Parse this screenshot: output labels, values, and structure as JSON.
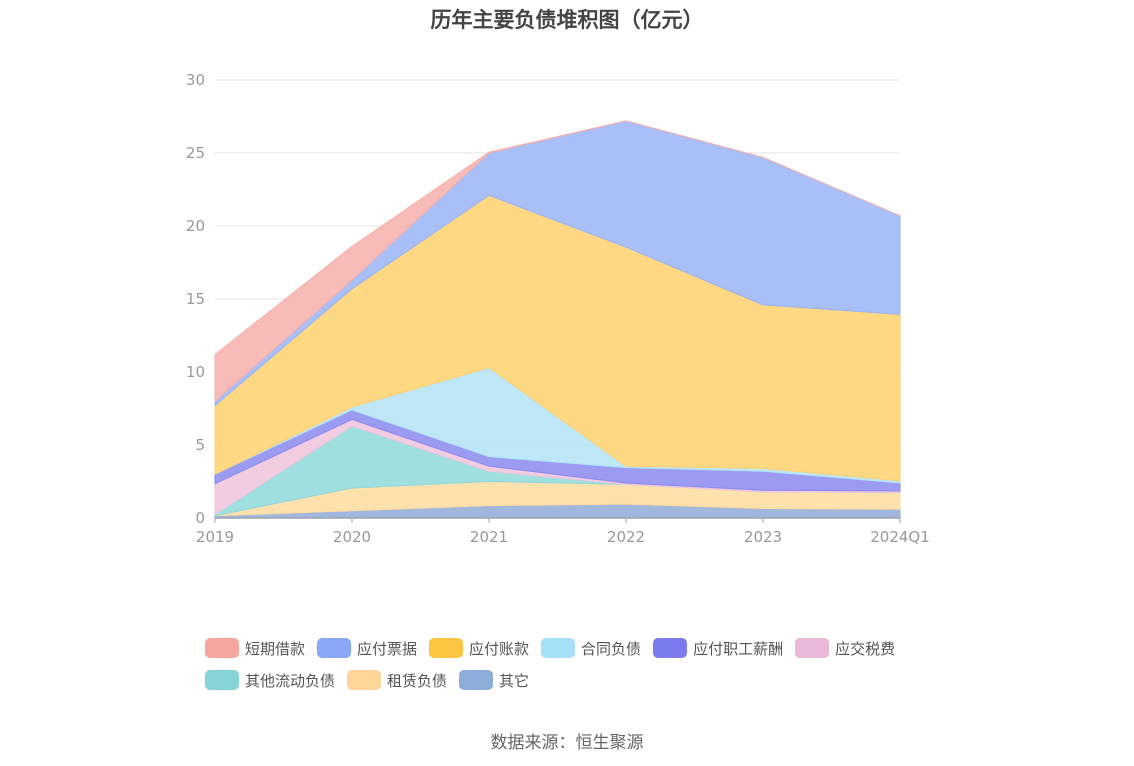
{
  "chart_data": {
    "type": "area",
    "title": "历年主要负债堆积图（亿元）",
    "categories": [
      "2019",
      "2020",
      "2021",
      "2022",
      "2023",
      "2024Q1"
    ],
    "ylim": [
      0,
      30
    ],
    "yticks": [
      0,
      5,
      10,
      15,
      20,
      25,
      30
    ],
    "stacked": true,
    "grid": true,
    "legend_position": "bottom",
    "series": [
      {
        "name": "其它",
        "color": "#91abd6",
        "values": [
          0.15,
          0.5,
          0.85,
          0.95,
          0.65,
          0.6
        ]
      },
      {
        "name": "租赁负债",
        "color": "#ffdca0",
        "values": [
          0.0,
          1.55,
          1.65,
          1.35,
          1.15,
          1.15
        ]
      },
      {
        "name": "其他流动负债",
        "color": "#8fd9d9",
        "values": [
          0.1,
          4.25,
          0.7,
          0.0,
          0.0,
          0.0
        ]
      },
      {
        "name": "应交税费",
        "color": "#f0c4dd",
        "values": [
          2.1,
          0.45,
          0.35,
          0.1,
          0.1,
          0.1
        ]
      },
      {
        "name": "应付职工薪酬",
        "color": "#8a8af0",
        "values": [
          0.65,
          0.65,
          0.65,
          1.05,
          1.3,
          0.55
        ]
      },
      {
        "name": "合同负债",
        "color": "#b3e3f7",
        "values": [
          0.0,
          0.2,
          6.1,
          0.1,
          0.2,
          0.15
        ]
      },
      {
        "name": "应付账款",
        "color": "#ffd16e",
        "values": [
          4.7,
          8.1,
          11.8,
          15.0,
          11.2,
          11.4
        ]
      },
      {
        "name": "应付票据",
        "color": "#9ab4f7",
        "values": [
          0.3,
          0.6,
          2.9,
          8.65,
          10.1,
          6.75
        ]
      },
      {
        "name": "短期借款",
        "color": "#f7b0ab",
        "values": [
          3.2,
          2.3,
          0.05,
          0.0,
          0.0,
          0.0
        ]
      }
    ]
  },
  "legend": {
    "items": [
      {
        "label": "短期借款",
        "color": "#f7a59f"
      },
      {
        "label": "应付票据",
        "color": "#8aa8f7"
      },
      {
        "label": "应付账款",
        "color": "#fdc542"
      },
      {
        "label": "合同负债",
        "color": "#a6e0f7"
      },
      {
        "label": "应付职工薪酬",
        "color": "#7b7bef"
      },
      {
        "label": "应交税费",
        "color": "#eab8d8"
      },
      {
        "label": "其他流动负债",
        "color": "#85d3d6"
      },
      {
        "label": "租赁负债",
        "color": "#ffd697"
      },
      {
        "label": "其它",
        "color": "#8fadd9"
      }
    ]
  },
  "source": "数据来源：恒生聚源"
}
